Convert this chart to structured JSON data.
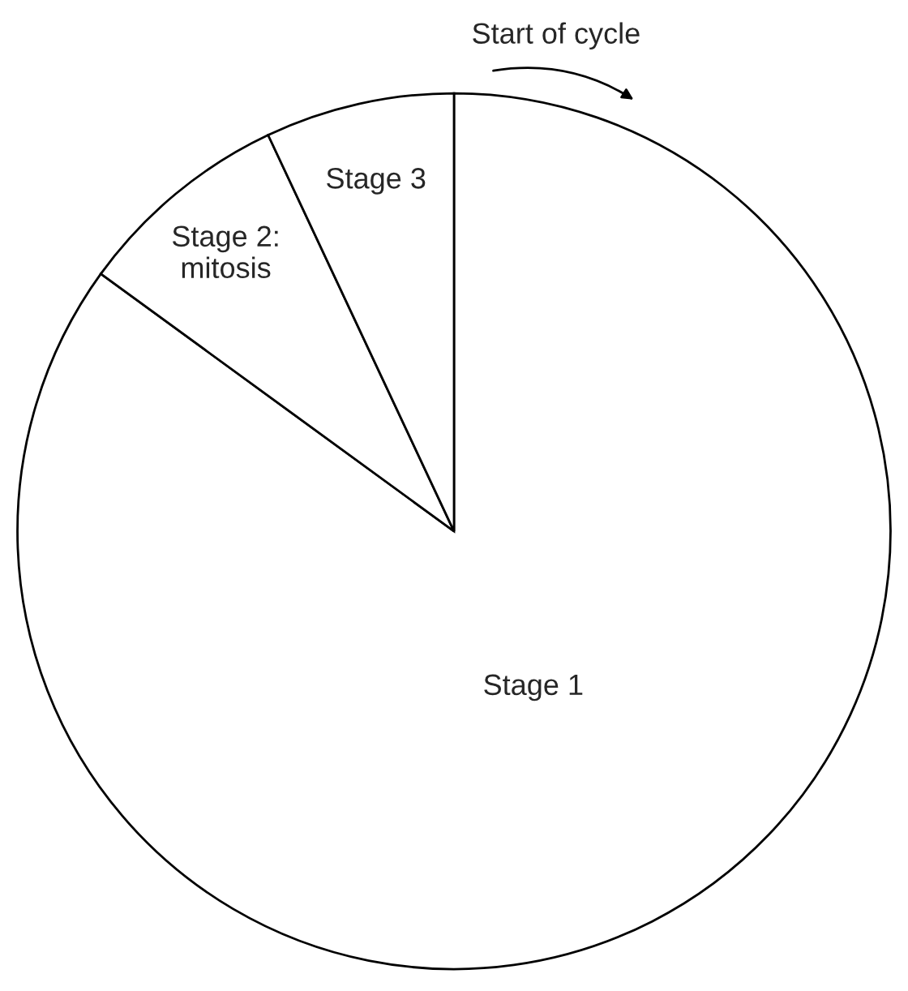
{
  "chart_data": {
    "type": "pie",
    "categories": [
      "Stage 1",
      "Stage 2:\nmitosis",
      "Stage 3"
    ],
    "values": [
      85,
      8,
      7
    ],
    "colors": [
      "#ffffff",
      "#ffffff",
      "#ffffff"
    ],
    "annotations": [
      "Start of cycle"
    ],
    "legend": false
  }
}
